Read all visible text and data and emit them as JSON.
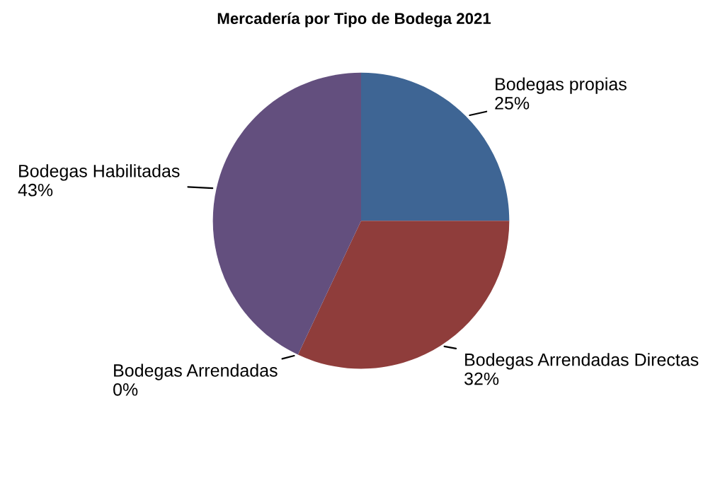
{
  "chart_data": {
    "type": "pie",
    "title": "Mercadería por Tipo de Bodega 2021",
    "categories": [
      "Bodegas propias",
      "Bodegas Arrendadas Directas",
      "Bodegas Arrendadas",
      "Bodegas Habilitadas"
    ],
    "values": [
      25,
      32,
      0,
      43
    ],
    "value_labels": [
      "25%",
      "32%",
      "0%",
      "43%"
    ],
    "colors": [
      "#3e6594",
      "#8f3d3b",
      "#7a9a48",
      "#634f7e"
    ]
  }
}
